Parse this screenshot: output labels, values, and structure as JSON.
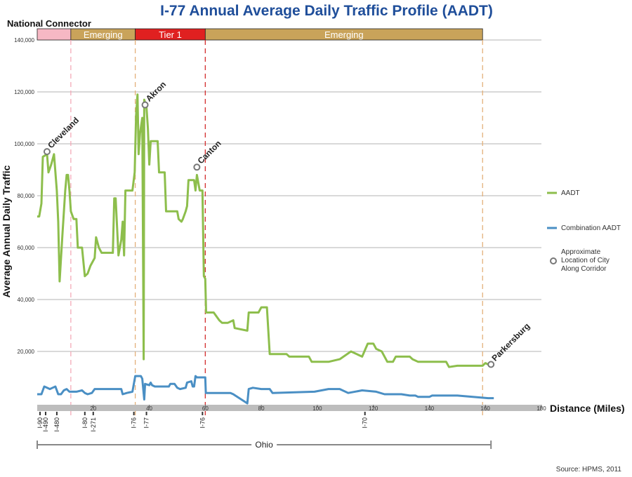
{
  "chart_data": {
    "type": "line",
    "title": "I-77 Annual Average Daily Traffic Profile (AADT)",
    "xlabel": "Distance (Miles)",
    "ylabel": "Average Annual Daily Traffic",
    "xlim": [
      0,
      180
    ],
    "ylim": [
      0,
      140000
    ],
    "x_ticks": [
      "20",
      "40",
      "60",
      "80",
      "100",
      "120",
      "140",
      "160",
      "180"
    ],
    "y_ticks": [
      "20,000",
      "40,000",
      "60,000",
      "80,000",
      "100,000",
      "120,000",
      "140,000"
    ],
    "grid": true,
    "legend_position": "right",
    "corridor_header": {
      "label": "National Connector",
      "segments": [
        {
          "label": "",
          "start": 0,
          "end": 12,
          "color": "#f6b8c4"
        },
        {
          "label": "Emerging",
          "start": 12,
          "end": 35,
          "color": "#c9a35a"
        },
        {
          "label": "Tier 1",
          "start": 35,
          "end": 60,
          "color": "#e02020"
        },
        {
          "label": "Emerging",
          "start": 60,
          "end": 159,
          "color": "#c9a35a"
        }
      ],
      "dividers": [
        {
          "x": 12,
          "color": "#f3aab8"
        },
        {
          "x": 35,
          "color": "#e3b07a"
        },
        {
          "x": 60,
          "color": "#d32f2f"
        },
        {
          "x": 159,
          "color": "#e3b07a"
        }
      ]
    },
    "series": [
      {
        "name": "AADT",
        "color": "#8dbe4c",
        "points": [
          [
            0,
            72000
          ],
          [
            0.7,
            72000
          ],
          [
            1.5,
            77000
          ],
          [
            2,
            95000
          ],
          [
            3.5,
            96000
          ],
          [
            4,
            89000
          ],
          [
            5,
            92000
          ],
          [
            6,
            96000
          ],
          [
            7,
            82000
          ],
          [
            7.5,
            70000
          ],
          [
            8,
            47000
          ],
          [
            9,
            65000
          ],
          [
            10,
            82000
          ],
          [
            10.5,
            88000
          ],
          [
            11,
            88000
          ],
          [
            11.5,
            82000
          ],
          [
            12,
            74000
          ],
          [
            13,
            71000
          ],
          [
            14,
            71000
          ],
          [
            14.5,
            60000
          ],
          [
            16,
            60000
          ],
          [
            17,
            49000
          ],
          [
            18,
            50000
          ],
          [
            19,
            53000
          ],
          [
            20,
            55000
          ],
          [
            20.5,
            56000
          ],
          [
            21,
            64000
          ],
          [
            22,
            60000
          ],
          [
            23,
            58000
          ],
          [
            26,
            58000
          ],
          [
            27,
            58000
          ],
          [
            27.5,
            79000
          ],
          [
            28,
            79000
          ],
          [
            28.5,
            68000
          ],
          [
            29,
            57000
          ],
          [
            30,
            63000
          ],
          [
            30.5,
            70000
          ],
          [
            31,
            57000
          ],
          [
            31.5,
            82000
          ],
          [
            34,
            82000
          ],
          [
            34.8,
            89000
          ],
          [
            35.3,
            111000
          ],
          [
            35.8,
            119000
          ],
          [
            36.2,
            96000
          ],
          [
            36.7,
            104000
          ],
          [
            37.5,
            110000
          ],
          [
            38,
            17000
          ],
          [
            38.2,
            117000
          ],
          [
            39,
            114000
          ],
          [
            39.5,
            106000
          ],
          [
            40,
            92000
          ],
          [
            40.5,
            101000
          ],
          [
            43,
            101000
          ],
          [
            43.5,
            89000
          ],
          [
            45.5,
            89000
          ],
          [
            46,
            74000
          ],
          [
            50,
            74000
          ],
          [
            50.5,
            71000
          ],
          [
            51.5,
            70000
          ],
          [
            52,
            71000
          ],
          [
            53,
            74000
          ],
          [
            53.5,
            76000
          ],
          [
            54,
            86000
          ],
          [
            56,
            86000
          ],
          [
            56.5,
            82000
          ],
          [
            57,
            88000
          ],
          [
            58,
            82000
          ],
          [
            59,
            82000
          ],
          [
            59.5,
            49000
          ],
          [
            60,
            48000
          ],
          [
            60.3,
            35000
          ],
          [
            63,
            35000
          ],
          [
            65,
            32000
          ],
          [
            66,
            31000
          ],
          [
            68,
            31000
          ],
          [
            70,
            32000
          ],
          [
            70.5,
            29000
          ],
          [
            75,
            28000
          ],
          [
            75.5,
            35000
          ],
          [
            79,
            35000
          ],
          [
            80,
            37000
          ],
          [
            82,
            37000
          ],
          [
            83,
            19000
          ],
          [
            89,
            19000
          ],
          [
            90,
            18000
          ],
          [
            97,
            18000
          ],
          [
            98,
            16000
          ],
          [
            104,
            16000
          ],
          [
            108,
            17000
          ],
          [
            112,
            20000
          ],
          [
            116,
            18000
          ],
          [
            118,
            23000
          ],
          [
            120,
            23000
          ],
          [
            121,
            21000
          ],
          [
            123,
            20000
          ],
          [
            125,
            16000
          ],
          [
            127,
            16000
          ],
          [
            128,
            18000
          ],
          [
            133,
            18000
          ],
          [
            134,
            17000
          ],
          [
            136,
            16000
          ],
          [
            146,
            16000
          ],
          [
            147,
            14000
          ],
          [
            150,
            14500
          ],
          [
            159,
            14500
          ],
          [
            160,
            15500
          ],
          [
            161,
            15000
          ]
        ]
      },
      {
        "name": "Combination AADT",
        "color": "#4a8fc4",
        "points": [
          [
            0,
            3500
          ],
          [
            1.5,
            3500
          ],
          [
            2.5,
            6500
          ],
          [
            3.5,
            6000
          ],
          [
            4.5,
            5500
          ],
          [
            5.5,
            6000
          ],
          [
            6.5,
            6500
          ],
          [
            7.5,
            3500
          ],
          [
            8.5,
            3500
          ],
          [
            9.5,
            5000
          ],
          [
            10.5,
            5500
          ],
          [
            11.5,
            4500
          ],
          [
            14,
            4500
          ],
          [
            16,
            5000
          ],
          [
            17,
            4000
          ],
          [
            18,
            3500
          ],
          [
            19.5,
            4000
          ],
          [
            20.5,
            5500
          ],
          [
            30,
            5500
          ],
          [
            30.5,
            3500
          ],
          [
            32,
            4000
          ],
          [
            34,
            4500
          ],
          [
            35,
            10500
          ],
          [
            37,
            10500
          ],
          [
            37.5,
            9500
          ],
          [
            38.2,
            1500
          ],
          [
            38.5,
            7500
          ],
          [
            40,
            7000
          ],
          [
            40.5,
            8000
          ],
          [
            41,
            7000
          ],
          [
            42,
            6500
          ],
          [
            47,
            6500
          ],
          [
            47.5,
            7500
          ],
          [
            49,
            7500
          ],
          [
            50,
            6000
          ],
          [
            51,
            5500
          ],
          [
            53,
            6000
          ],
          [
            53.5,
            8000
          ],
          [
            55,
            8500
          ],
          [
            55.5,
            6500
          ],
          [
            56,
            6500
          ],
          [
            56.5,
            10500
          ],
          [
            57,
            10000
          ],
          [
            60,
            10000
          ],
          [
            60.2,
            4000
          ],
          [
            69,
            4000
          ],
          [
            70,
            3500
          ],
          [
            75,
            0
          ],
          [
            75.5,
            5500
          ],
          [
            77,
            6000
          ],
          [
            80,
            5500
          ],
          [
            83,
            5500
          ],
          [
            84,
            4000
          ],
          [
            99,
            4500
          ],
          [
            104,
            5500
          ],
          [
            108,
            5500
          ],
          [
            111,
            4000
          ],
          [
            116,
            5000
          ],
          [
            121,
            4500
          ],
          [
            124,
            3500
          ],
          [
            130,
            3500
          ],
          [
            133,
            3000
          ],
          [
            135,
            3000
          ],
          [
            136,
            2500
          ],
          [
            140,
            2500
          ],
          [
            141,
            3000
          ],
          [
            150,
            3000
          ],
          [
            161,
            2000
          ],
          [
            163,
            2000
          ]
        ]
      }
    ],
    "cities": [
      {
        "name": "Cleveland",
        "x": 3.5,
        "y": 97000
      },
      {
        "name": "Akron",
        "x": 38.5,
        "y": 115000
      },
      {
        "name": "Canton",
        "x": 57,
        "y": 91000
      },
      {
        "name": "Parkersburg",
        "x": 162,
        "y": 15000
      }
    ],
    "interstates": [
      {
        "label": "I-90",
        "x": 1
      },
      {
        "label": "I-490",
        "x": 3
      },
      {
        "label": "I-480",
        "x": 7
      },
      {
        "label": "I-80",
        "x": 17
      },
      {
        "label": "I-271",
        "x": 20
      },
      {
        "label": "I-76",
        "x": 34.5
      },
      {
        "label": "I-77",
        "x": 39
      },
      {
        "label": "I-76",
        "x": 59
      },
      {
        "label": "I-70",
        "x": 117
      }
    ],
    "state_extent": {
      "label": "Ohio",
      "start": 0,
      "end": 162
    },
    "legend": [
      {
        "label": "AADT",
        "kind": "line",
        "color": "#8dbe4c"
      },
      {
        "label": "Combination AADT",
        "kind": "line",
        "color": "#4a8fc4"
      },
      {
        "label": "Approximate Location of City Along Corridor",
        "kind": "marker",
        "color": "#777777"
      }
    ],
    "source": "Source: HPMS, 2011"
  }
}
